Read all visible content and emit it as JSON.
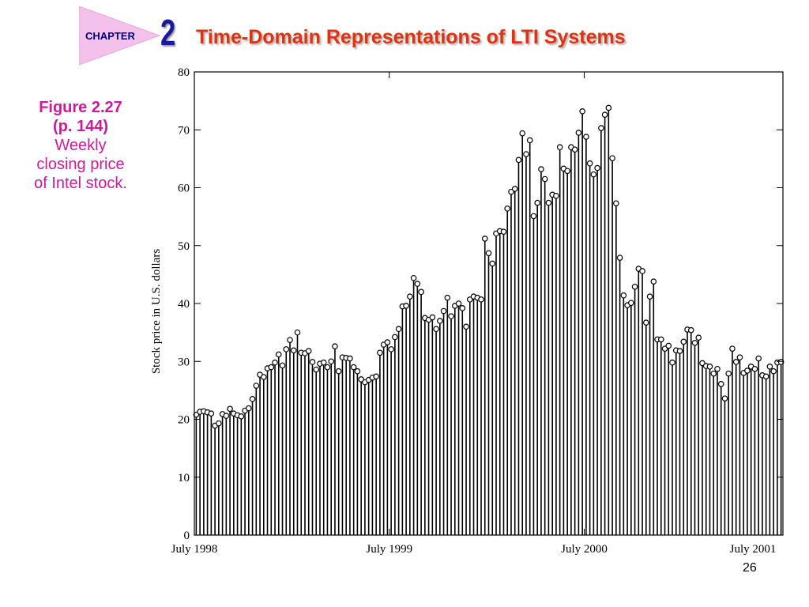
{
  "header": {
    "chapter_label": "CHAPTER",
    "chapter_number": "2",
    "title": "Time-Domain Representations of LTI Systems"
  },
  "caption": {
    "figure": "Figure 2.27",
    "page_ref": "(p. 144)",
    "line1": "Weekly",
    "line2": "closing price",
    "line3": "of Intel stock."
  },
  "page_number": "26",
  "colors": {
    "badge": "#f4c0ec",
    "chapter_text": "#000080",
    "chapter_number": "#1a1aa0",
    "title": "#e0320f",
    "caption": "#cc1a9a"
  },
  "chart_data": {
    "type": "stem",
    "title": "",
    "xlabel": "",
    "ylabel": "Stock price in U.S. dollars",
    "ylim": [
      0,
      80
    ],
    "yticks": [
      0,
      10,
      20,
      30,
      40,
      50,
      60,
      70,
      80
    ],
    "xtick_labels": [
      "July 1998",
      "July 1999",
      "July 2000",
      "July 2001"
    ],
    "x_unit": "weeks since July 1998 (markers at 0, 52, 104, 156)",
    "grid": false,
    "values": [
      20.8,
      21.3,
      21.4,
      21.2,
      21.0,
      18.9,
      19.3,
      20.9,
      20.6,
      21.8,
      21.0,
      20.7,
      20.5,
      21.5,
      21.9,
      23.5,
      25.8,
      27.7,
      27.3,
      28.8,
      29.0,
      29.8,
      31.2,
      29.3,
      32.1,
      33.7,
      31.9,
      35.0,
      31.5,
      31.4,
      31.8,
      29.9,
      28.6,
      29.6,
      29.8,
      29.0,
      30.0,
      32.6,
      28.3,
      30.7,
      30.6,
      30.5,
      29.0,
      28.3,
      26.9,
      26.4,
      26.8,
      27.2,
      27.4,
      31.5,
      32.9,
      33.3,
      32.1,
      34.2,
      35.6,
      39.5,
      39.6,
      41.2,
      44.4,
      43.4,
      42.0,
      37.5,
      37.2,
      37.6,
      35.6,
      37.0,
      38.7,
      41.0,
      37.8,
      39.6,
      40.0,
      39.2,
      36.0,
      40.7,
      41.2,
      41.0,
      40.7,
      51.2,
      48.7,
      46.9,
      52.1,
      52.5,
      52.4,
      56.4,
      59.3,
      59.8,
      64.8,
      69.4,
      65.8,
      68.2,
      55.1,
      57.4,
      63.2,
      61.5,
      57.4,
      58.8,
      58.6,
      67.0,
      63.3,
      62.9,
      67.0,
      66.6,
      69.5,
      73.2,
      68.8,
      64.2,
      62.3,
      63.4,
      70.3,
      72.6,
      73.8,
      65.1,
      57.3,
      47.9,
      41.4,
      39.7,
      40.1,
      42.9,
      46.0,
      45.6,
      36.7,
      41.2,
      43.8,
      33.8,
      33.8,
      32.2,
      32.7,
      29.8,
      31.9,
      31.8,
      33.4,
      35.5,
      35.4,
      33.2,
      34.1,
      29.7,
      29.2,
      29.1,
      27.9,
      28.7,
      26.1,
      23.6,
      27.9,
      32.2,
      29.9,
      30.7,
      28.0,
      28.4,
      29.1,
      28.7,
      30.5,
      27.6,
      27.4,
      29.1,
      28.3,
      29.8,
      29.9
    ]
  }
}
